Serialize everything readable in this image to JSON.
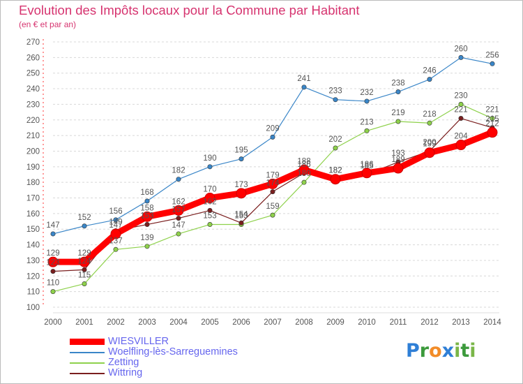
{
  "header": {
    "title": "Evolution des Impôts locaux pour la Commune par Habitant",
    "subtitle": "(en € et par an)"
  },
  "brand": {
    "letters": [
      {
        "char": "P",
        "color": "#2f7fd6"
      },
      {
        "char": "r",
        "color": "#3c9a3c"
      },
      {
        "char": "o",
        "color": "#f28c28"
      },
      {
        "char": "x",
        "color": "#2f7fd6"
      },
      {
        "char": "i",
        "color": "#7ab648"
      },
      {
        "char": "t",
        "color": "#3c9a3c"
      },
      {
        "char": "i",
        "color": "#7ab648"
      }
    ]
  },
  "chart_data": {
    "type": "line",
    "title": "Evolution des Impôts locaux pour la Commune par Habitant",
    "subtitle": "(en € et par an)",
    "x": [
      "2000",
      "2001",
      "2002",
      "2003",
      "2004",
      "2005",
      "2006",
      "2007",
      "2008",
      "2009",
      "2010",
      "2011",
      "2012",
      "2013",
      "2014"
    ],
    "ylim": [
      100,
      270
    ],
    "yticks": [
      100,
      110,
      120,
      130,
      140,
      150,
      160,
      170,
      180,
      190,
      200,
      210,
      220,
      230,
      240,
      250,
      260,
      270
    ],
    "grid": "horizontal-dashed",
    "legend_position": "bottom-left",
    "series": [
      {
        "name": "WIESVILLER",
        "color": "#ff0000",
        "values": [
          129,
          129,
          147,
          158,
          162,
          170,
          173,
          179,
          188,
          182,
          186,
          189,
          199,
          204,
          212
        ]
      },
      {
        "name": "Woelfling-lès-Sarreguemines",
        "color": "#3a86c8",
        "values": [
          147,
          152,
          156,
          168,
          182,
          190,
          195,
          209,
          241,
          233,
          232,
          238,
          246,
          260,
          256
        ]
      },
      {
        "name": "Zetting",
        "color": "#8ed14b",
        "values": [
          110,
          115,
          137,
          139,
          147,
          153,
          153,
          159,
          180,
          202,
          213,
          219,
          218,
          230,
          221
        ]
      },
      {
        "name": "Wittring",
        "color": "#7a1e1e",
        "values": [
          123,
          124,
          149,
          153,
          157,
          162,
          154,
          174,
          186,
          182,
          185,
          193,
          200,
          221,
          215
        ]
      }
    ]
  }
}
